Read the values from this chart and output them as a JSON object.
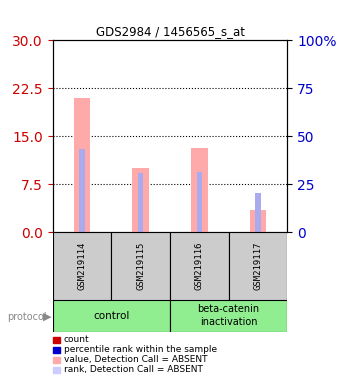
{
  "title": "GDS2984 / 1456565_s_at",
  "samples": [
    "GSM219114",
    "GSM219115",
    "GSM219116",
    "GSM219117"
  ],
  "pink_bars": [
    21.0,
    10.0,
    13.2,
    3.5
  ],
  "blue_bars": [
    13.0,
    9.2,
    9.5,
    6.2
  ],
  "left_ylim": [
    0,
    30
  ],
  "left_yticks": [
    0,
    7.5,
    15,
    22.5,
    30
  ],
  "right_yticks": [
    0,
    25,
    50,
    75,
    100
  ],
  "pink_color": "#ffaaaa",
  "blue_color": "#aaaaee",
  "legend_items": [
    {
      "color": "#cc0000",
      "label": "count"
    },
    {
      "color": "#0000cc",
      "label": "percentile rank within the sample"
    },
    {
      "color": "#ffaaaa",
      "label": "value, Detection Call = ABSENT"
    },
    {
      "color": "#ccccff",
      "label": "rank, Detection Call = ABSENT"
    }
  ],
  "bg_color": "#cccccc",
  "left_tick_color": "#cc0000",
  "right_tick_color": "#0000cc",
  "grid_color": "black",
  "grid_yticks": [
    7.5,
    15,
    22.5
  ]
}
